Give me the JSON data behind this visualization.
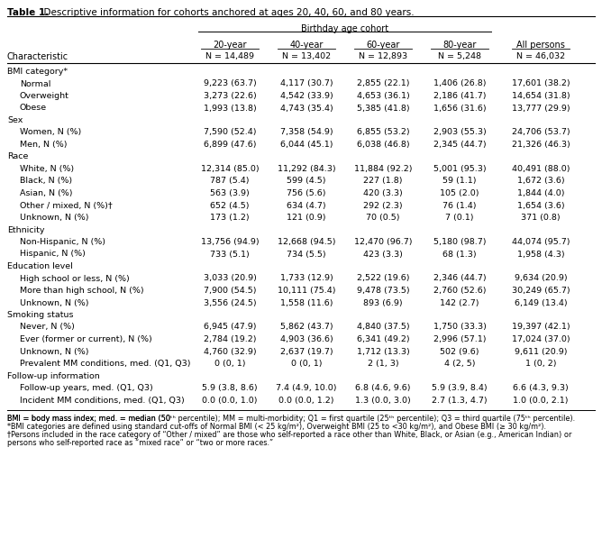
{
  "title_bold": "Table 1.",
  "title_rest": "  Descriptive information for cohorts anchored at ages 20, 40, 60, and 80 years.",
  "col_header_group": "Birthday age cohort",
  "col_headers": [
    "20-year",
    "40-year",
    "60-year",
    "80-year",
    "All persons"
  ],
  "subheaders": [
    "N = 14,489",
    "N = 13,402",
    "N = 12,893",
    "N = 5,248",
    "N = 46,032"
  ],
  "rows": [
    {
      "label": "BMI category*",
      "indent": 0,
      "section": true,
      "values": [
        "",
        "",
        "",
        "",
        ""
      ]
    },
    {
      "label": "Normal",
      "indent": 1,
      "section": false,
      "values": [
        "9,223 (63.7)",
        "4,117 (30.7)",
        "2,855 (22.1)",
        "1,406 (26.8)",
        "17,601 (38.2)"
      ]
    },
    {
      "label": "Overweight",
      "indent": 1,
      "section": false,
      "values": [
        "3,273 (22.6)",
        "4,542 (33.9)",
        "4,653 (36.1)",
        "2,186 (41.7)",
        "14,654 (31.8)"
      ]
    },
    {
      "label": "Obese",
      "indent": 1,
      "section": false,
      "values": [
        "1,993 (13.8)",
        "4,743 (35.4)",
        "5,385 (41.8)",
        "1,656 (31.6)",
        "13,777 (29.9)"
      ]
    },
    {
      "label": "Sex",
      "indent": 0,
      "section": true,
      "values": [
        "",
        "",
        "",
        "",
        ""
      ]
    },
    {
      "label": "Women, N (%)",
      "indent": 1,
      "section": false,
      "values": [
        "7,590 (52.4)",
        "7,358 (54.9)",
        "6,855 (53.2)",
        "2,903 (55.3)",
        "24,706 (53.7)"
      ]
    },
    {
      "label": "Men, N (%)",
      "indent": 1,
      "section": false,
      "values": [
        "6,899 (47.6)",
        "6,044 (45.1)",
        "6,038 (46.8)",
        "2,345 (44.7)",
        "21,326 (46.3)"
      ]
    },
    {
      "label": "Race",
      "indent": 0,
      "section": true,
      "values": [
        "",
        "",
        "",
        "",
        ""
      ]
    },
    {
      "label": "White, N (%)",
      "indent": 1,
      "section": false,
      "values": [
        "12,314 (85.0)",
        "11,292 (84.3)",
        "11,884 (92.2)",
        "5,001 (95.3)",
        "40,491 (88.0)"
      ]
    },
    {
      "label": "Black, N (%)",
      "indent": 1,
      "section": false,
      "values": [
        "787 (5.4)",
        "599 (4.5)",
        "227 (1.8)",
        "59 (1.1)",
        "1,672 (3.6)"
      ]
    },
    {
      "label": "Asian, N (%)",
      "indent": 1,
      "section": false,
      "values": [
        "563 (3.9)",
        "756 (5.6)",
        "420 (3.3)",
        "105 (2.0)",
        "1,844 (4.0)"
      ]
    },
    {
      "label": "Other / mixed, N (%)†",
      "indent": 1,
      "section": false,
      "values": [
        "652 (4.5)",
        "634 (4.7)",
        "292 (2.3)",
        "76 (1.4)",
        "1,654 (3.6)"
      ]
    },
    {
      "label": "Unknown, N (%)",
      "indent": 1,
      "section": false,
      "values": [
        "173 (1.2)",
        "121 (0.9)",
        "70 (0.5)",
        "7 (0.1)",
        "371 (0.8)"
      ]
    },
    {
      "label": "Ethnicity",
      "indent": 0,
      "section": true,
      "values": [
        "",
        "",
        "",
        "",
        ""
      ]
    },
    {
      "label": "Non-Hispanic, N (%)",
      "indent": 1,
      "section": false,
      "values": [
        "13,756 (94.9)",
        "12,668 (94.5)",
        "12,470 (96.7)",
        "5,180 (98.7)",
        "44,074 (95.7)"
      ]
    },
    {
      "label": "Hispanic, N (%)",
      "indent": 1,
      "section": false,
      "values": [
        "733 (5.1)",
        "734 (5.5)",
        "423 (3.3)",
        "68 (1.3)",
        "1,958 (4.3)"
      ]
    },
    {
      "label": "Education level",
      "indent": 0,
      "section": true,
      "values": [
        "",
        "",
        "",
        "",
        ""
      ]
    },
    {
      "label": "High school or less, N (%)",
      "indent": 1,
      "section": false,
      "values": [
        "3,033 (20.9)",
        "1,733 (12.9)",
        "2,522 (19.6)",
        "2,346 (44.7)",
        "9,634 (20.9)"
      ]
    },
    {
      "label": "More than high school, N (%)",
      "indent": 1,
      "section": false,
      "values": [
        "7,900 (54.5)",
        "10,111 (75.4)",
        "9,478 (73.5)",
        "2,760 (52.6)",
        "30,249 (65.7)"
      ]
    },
    {
      "label": "Unknown, N (%)",
      "indent": 1,
      "section": false,
      "values": [
        "3,556 (24.5)",
        "1,558 (11.6)",
        "893 (6.9)",
        "142 (2.7)",
        "6,149 (13.4)"
      ]
    },
    {
      "label": "Smoking status",
      "indent": 0,
      "section": true,
      "values": [
        "",
        "",
        "",
        "",
        ""
      ]
    },
    {
      "label": "Never, N (%)",
      "indent": 1,
      "section": false,
      "values": [
        "6,945 (47.9)",
        "5,862 (43.7)",
        "4,840 (37.5)",
        "1,750 (33.3)",
        "19,397 (42.1)"
      ]
    },
    {
      "label": "Ever (former or current), N (%)",
      "indent": 1,
      "section": false,
      "values": [
        "2,784 (19.2)",
        "4,903 (36.6)",
        "6,341 (49.2)",
        "2,996 (57.1)",
        "17,024 (37.0)"
      ]
    },
    {
      "label": "Unknown, N (%)",
      "indent": 1,
      "section": false,
      "values": [
        "4,760 (32.9)",
        "2,637 (19.7)",
        "1,712 (13.3)",
        "502 (9.6)",
        "9,611 (20.9)"
      ]
    },
    {
      "label": "Prevalent MM conditions, med. (Q1, Q3)",
      "indent": 1,
      "section": false,
      "values": [
        "0 (0, 1)",
        "0 (0, 1)",
        "2 (1, 3)",
        "4 (2, 5)",
        "1 (0, 2)"
      ]
    },
    {
      "label": "Follow-up information",
      "indent": 0,
      "section": true,
      "values": [
        "",
        "",
        "",
        "",
        ""
      ]
    },
    {
      "label": "Follow-up years, med. (Q1, Q3)",
      "indent": 1,
      "section": false,
      "values": [
        "5.9 (3.8, 8.6)",
        "7.4 (4.9, 10.0)",
        "6.8 (4.6, 9.6)",
        "5.9 (3.9, 8.4)",
        "6.6 (4.3, 9.3)"
      ]
    },
    {
      "label": "Incident MM conditions, med. (Q1, Q3)",
      "indent": 1,
      "section": false,
      "values": [
        "0.0 (0.0, 1.0)",
        "0.0 (0.0, 1.2)",
        "1.3 (0.0, 3.0)",
        "2.7 (1.3, 4.7)",
        "1.0 (0.0, 2.1)"
      ]
    }
  ],
  "footnote1": "BMI = body mass index; med. = median (50",
  "footnote1_sup1": "th",
  "footnote1_mid1": " percentile); MM = multi-morbidity; Q1 = first quartile (25",
  "footnote1_sup2": "th",
  "footnote1_mid2": " percentile); Q3 = third quartile (75",
  "footnote1_sup3": "th",
  "footnote1_end": " percentile).",
  "footnote2": "*BMI categories are defined using standard cut-offs of Normal BMI (< 25 kg/m",
  "footnote2_sup": "2",
  "footnote2_mid": "), Overweight BMI (25 to <30 kg/m",
  "footnote2_sup2": "2",
  "footnote2_mid2": "), and Obese BMI (≥ 30 kg/m",
  "footnote2_sup3": "2",
  "footnote2_end": ").",
  "footnote3": "†Persons included in the race category of “Other / mixed” are those who self-reported a race other than White, Black, or Asian (e.g., American Indian) or",
  "footnote4": "persons who self-reported race as “mixed race” or “two or more races.”"
}
